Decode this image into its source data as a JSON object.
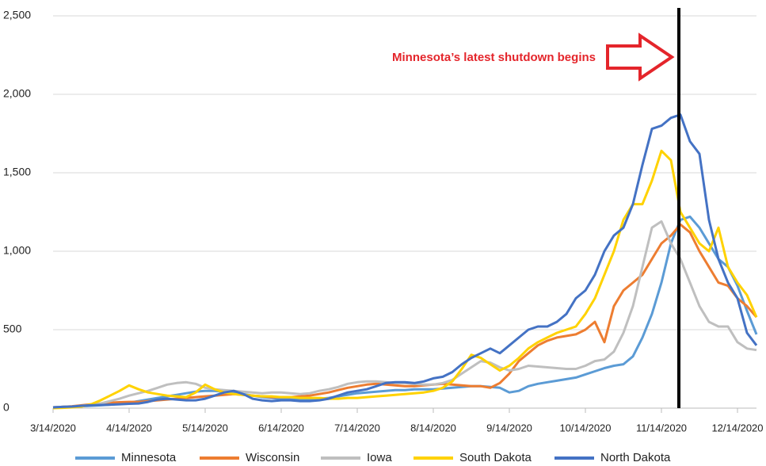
{
  "chart_data": {
    "type": "line",
    "annotation": "Minnesota’s latest shutdown begins",
    "categories": [
      "3/14/2020",
      null,
      null,
      null,
      null,
      null,
      null,
      null,
      "4/14/2020",
      null,
      null,
      null,
      null,
      null,
      null,
      null,
      "5/14/2020",
      null,
      null,
      null,
      null,
      null,
      null,
      null,
      "6/14/2020",
      null,
      null,
      null,
      null,
      null,
      null,
      null,
      "7/14/2020",
      null,
      null,
      null,
      null,
      null,
      null,
      null,
      "8/14/2020",
      null,
      null,
      null,
      null,
      null,
      null,
      null,
      "9/14/2020",
      null,
      null,
      null,
      null,
      null,
      null,
      null,
      "10/14/2020",
      null,
      null,
      null,
      null,
      null,
      null,
      null,
      "11/14/2020",
      null,
      null,
      null,
      null,
      null,
      null,
      null,
      "12/14/2020",
      null,
      null
    ],
    "ylim": [
      0,
      2500
    ],
    "yticks": [
      0,
      500,
      {
        "value": 1000,
        "label": "1,000"
      },
      {
        "value": 1500,
        "label": "1,500"
      },
      {
        "value": 2000,
        "label": "2,000"
      },
      {
        "value": 2500,
        "label": "2,500"
      }
    ],
    "grid": true,
    "legend": "bottom",
    "series": [
      {
        "name": "Minnesota",
        "color": "#5b9bd5",
        "values": [
          5,
          8,
          10,
          12,
          15,
          18,
          22,
          28,
          35,
          45,
          55,
          65,
          75,
          85,
          95,
          105,
          110,
          110,
          105,
          100,
          90,
          80,
          70,
          65,
          60,
          55,
          55,
          55,
          60,
          65,
          75,
          85,
          95,
          100,
          105,
          110,
          115,
          115,
          120,
          120,
          120,
          125,
          130,
          135,
          140,
          140,
          135,
          130,
          100,
          110,
          140,
          155,
          165,
          175,
          185,
          195,
          215,
          235,
          255,
          270,
          280,
          330,
          450,
          600,
          800,
          1050,
          1200,
          1220,
          1150,
          1050,
          950,
          900,
          780,
          620,
          470
        ]
      },
      {
        "name": "Wisconsin",
        "color": "#ed7d31",
        "values": [
          5,
          8,
          12,
          18,
          25,
          30,
          35,
          38,
          40,
          40,
          45,
          50,
          55,
          60,
          65,
          70,
          75,
          80,
          85,
          90,
          85,
          80,
          75,
          70,
          70,
          70,
          75,
          80,
          90,
          100,
          115,
          130,
          140,
          150,
          155,
          150,
          145,
          140,
          140,
          145,
          150,
          155,
          150,
          145,
          140,
          140,
          130,
          160,
          220,
          300,
          350,
          400,
          430,
          450,
          460,
          470,
          500,
          550,
          420,
          650,
          750,
          800,
          850,
          950,
          1050,
          1100,
          1170,
          1120,
          1000,
          900,
          800,
          780,
          700,
          650,
          580
        ]
      },
      {
        "name": "Iowa",
        "color": "#bfbfbf",
        "values": [
          5,
          8,
          10,
          15,
          20,
          30,
          45,
          60,
          80,
          95,
          110,
          130,
          150,
          160,
          165,
          155,
          130,
          120,
          115,
          110,
          105,
          100,
          95,
          100,
          100,
          95,
          90,
          95,
          110,
          120,
          135,
          155,
          165,
          170,
          170,
          165,
          160,
          160,
          155,
          150,
          150,
          160,
          180,
          220,
          260,
          300,
          290,
          260,
          240,
          250,
          270,
          265,
          260,
          255,
          250,
          250,
          270,
          300,
          310,
          360,
          480,
          650,
          900,
          1150,
          1190,
          1050,
          950,
          800,
          650,
          550,
          520,
          520,
          420,
          380,
          370
        ]
      },
      {
        "name": "South Dakota",
        "color": "#ffd200",
        "values": [
          0,
          2,
          5,
          10,
          25,
          50,
          80,
          110,
          145,
          120,
          100,
          90,
          80,
          75,
          70,
          100,
          150,
          120,
          100,
          90,
          85,
          80,
          75,
          75,
          70,
          70,
          65,
          65,
          65,
          60,
          60,
          65,
          65,
          70,
          75,
          80,
          85,
          90,
          95,
          100,
          110,
          130,
          170,
          250,
          340,
          320,
          280,
          240,
          270,
          320,
          380,
          420,
          450,
          480,
          500,
          520,
          600,
          700,
          850,
          1000,
          1200,
          1300,
          1300,
          1450,
          1640,
          1580,
          1250,
          1150,
          1050,
          1000,
          1150,
          900,
          800,
          720,
          580
        ]
      },
      {
        "name": "North Dakota",
        "color": "#4472c4",
        "values": [
          5,
          8,
          10,
          15,
          18,
          20,
          22,
          25,
          28,
          30,
          40,
          55,
          60,
          55,
          50,
          50,
          60,
          80,
          100,
          110,
          90,
          60,
          50,
          45,
          50,
          50,
          45,
          45,
          50,
          60,
          80,
          100,
          110,
          120,
          140,
          160,
          165,
          165,
          160,
          170,
          190,
          200,
          230,
          280,
          320,
          350,
          380,
          350,
          400,
          450,
          500,
          520,
          520,
          550,
          600,
          700,
          750,
          850,
          1000,
          1100,
          1150,
          1300,
          1550,
          1780,
          1800,
          1850,
          1870,
          1700,
          1620,
          1200,
          950,
          800,
          700,
          480,
          400
        ]
      }
    ]
  }
}
